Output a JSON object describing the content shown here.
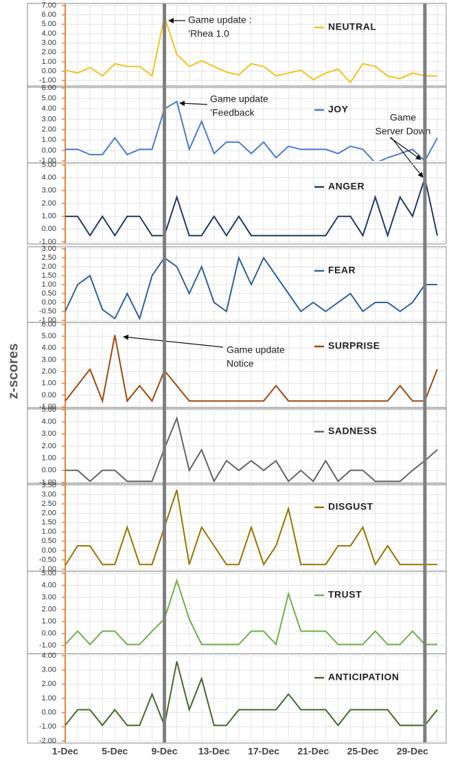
{
  "y_label": "z-scores",
  "chart_data": [
    {
      "type": "line",
      "grid": true,
      "series": [
        {
          "name": "NEUTRAL",
          "color": "#f2c21b",
          "values": [
            0.1,
            -0.2,
            0.4,
            -0.5,
            0.8,
            0.5,
            0.5,
            -0.5,
            5.8,
            1.8,
            0.5,
            1.1,
            0.5,
            -0.1,
            -0.4,
            0.8,
            0.5,
            -0.5,
            -0.2,
            0.1,
            -0.9,
            -0.2,
            0.2,
            -1.2,
            0.8,
            0.5,
            -0.5,
            -0.8,
            -0.2,
            -0.5,
            -0.5
          ]
        }
      ],
      "ylim": [
        -1.5,
        7
      ],
      "yticks": [
        {
          "value": 7,
          "label": "7.00"
        },
        {
          "value": 6,
          "label": "6.00"
        },
        {
          "value": 5,
          "label": "5.00"
        },
        {
          "value": 4,
          "label": "4.00"
        },
        {
          "value": 3,
          "label": "3.00"
        },
        {
          "value": 2,
          "label": "2.00"
        },
        {
          "value": 1,
          "label": "1.00"
        },
        {
          "value": 0,
          "label": "0.00"
        },
        {
          "value": -1,
          "label": "-1.00"
        }
      ],
      "annotations": [
        {
          "lines": [
            "Game update :",
            "’Rhea 1.0"
          ]
        }
      ]
    },
    {
      "type": "line",
      "grid": true,
      "series": [
        {
          "name": "JOY",
          "color": "#4a7bd0",
          "values": [
            0.1,
            0.1,
            -0.4,
            -0.4,
            1.2,
            -0.4,
            0.1,
            0.1,
            4.0,
            4.7,
            0.1,
            2.8,
            -0.3,
            0.8,
            0.8,
            -0.3,
            0.8,
            -0.7,
            0.4,
            0.1,
            0.1,
            0.1,
            -0.3,
            0.4,
            0.1,
            -1.2,
            -0.7,
            -0.3,
            0.1,
            -1.0,
            1.2
          ]
        }
      ],
      "ylim": [
        -1,
        6
      ],
      "yticks": [
        {
          "value": 6,
          "label": "6.00"
        },
        {
          "value": 5,
          "label": "5.00"
        },
        {
          "value": 4,
          "label": "4.00"
        },
        {
          "value": 3,
          "label": "3.00"
        },
        {
          "value": 2,
          "label": "2.00"
        },
        {
          "value": 1,
          "label": "1.00"
        },
        {
          "value": 0,
          "label": "0.00"
        },
        {
          "value": -1,
          "label": "-1.00"
        }
      ],
      "annotations": [
        {
          "lines": [
            "Game update",
            "’Feedback"
          ]
        },
        {
          "lines": [
            "Game",
            "Server Down"
          ]
        }
      ]
    },
    {
      "type": "line",
      "grid": true,
      "series": [
        {
          "name": "ANGER",
          "color": "#1f3864",
          "values": [
            1,
            1,
            -0.5,
            1,
            -0.5,
            1,
            1,
            -0.5,
            -0.5,
            2.5,
            -0.5,
            -0.5,
            1,
            -0.5,
            1,
            -0.5,
            -0.5,
            -0.5,
            -0.5,
            -0.5,
            -0.5,
            -0.5,
            1,
            1,
            -0.5,
            2.5,
            -0.5,
            2.5,
            1,
            4,
            -0.5
          ]
        }
      ],
      "ylim": [
        -1,
        5
      ],
      "yticks": [
        {
          "value": 5,
          "label": "5.00"
        },
        {
          "value": 4,
          "label": "4.00"
        },
        {
          "value": 3,
          "label": "3.00"
        },
        {
          "value": 2,
          "label": "2.00"
        },
        {
          "value": 1,
          "label": "1.00"
        },
        {
          "value": 0,
          "label": "0.00"
        },
        {
          "value": -1,
          "label": "-1.00"
        }
      ]
    },
    {
      "type": "line",
      "grid": true,
      "series": [
        {
          "name": "FEAR",
          "color": "#2e6198",
          "values": [
            -0.5,
            1.0,
            1.5,
            -0.4,
            -0.9,
            0.5,
            -0.9,
            1.5,
            2.5,
            2.0,
            0.5,
            2.0,
            0.0,
            -0.5,
            2.5,
            1.0,
            2.5,
            1.5,
            0.5,
            -0.5,
            0.0,
            -0.5,
            0.0,
            0.5,
            -0.5,
            0.0,
            0.0,
            -0.5,
            0.0,
            1.0,
            1.0
          ]
        }
      ],
      "ylim": [
        -1,
        3
      ],
      "yticks": [
        {
          "value": 3,
          "label": "3.00"
        },
        {
          "value": 2.5,
          "label": "2.50"
        },
        {
          "value": 2,
          "label": "2.00"
        },
        {
          "value": 1.5,
          "label": "1.50"
        },
        {
          "value": 1,
          "label": "1.00"
        },
        {
          "value": 0.5,
          "label": "0.50"
        },
        {
          "value": 0,
          "label": "0.00"
        },
        {
          "value": -0.5,
          "label": "-0.50"
        },
        {
          "value": -1,
          "label": "-1.00"
        }
      ]
    },
    {
      "type": "line",
      "grid": true,
      "series": [
        {
          "name": "SURPRISE",
          "color": "#9e480e",
          "values": [
            -0.5,
            0.85,
            2.2,
            -0.5,
            5.1,
            -0.5,
            0.8,
            -0.5,
            2.1,
            0.8,
            -0.5,
            -0.5,
            -0.5,
            -0.5,
            -0.5,
            -0.5,
            -0.5,
            0.8,
            -0.5,
            -0.5,
            -0.5,
            -0.5,
            -0.5,
            -0.5,
            -0.5,
            -0.5,
            -0.5,
            0.8,
            -0.5,
            -0.5,
            2.2
          ]
        }
      ],
      "ylim": [
        -1,
        6
      ],
      "yticks": [
        {
          "value": 6,
          "label": "6.00"
        },
        {
          "value": 5,
          "label": "5.00"
        },
        {
          "value": 4,
          "label": "4.00"
        },
        {
          "value": 3,
          "label": "3.00"
        },
        {
          "value": 2,
          "label": "2.00"
        },
        {
          "value": 1,
          "label": "1.00"
        },
        {
          "value": 0,
          "label": "0.00"
        },
        {
          "value": -1,
          "label": "-1.00"
        }
      ],
      "annotations": [
        {
          "lines": [
            "Game update",
            "Notice"
          ]
        }
      ]
    },
    {
      "type": "line",
      "grid": true,
      "series": [
        {
          "name": "SADNESS",
          "color": "#636363",
          "values": [
            0,
            0,
            -0.9,
            0,
            0,
            -0.9,
            -0.9,
            -0.9,
            1.8,
            4.3,
            0,
            1.7,
            -0.9,
            0.8,
            0,
            0.8,
            0,
            0.8,
            -0.9,
            0,
            -0.9,
            0.8,
            -0.9,
            0,
            0,
            -0.9,
            -0.9,
            -0.9,
            0,
            0.8,
            1.7
          ]
        }
      ],
      "ylim": [
        -1,
        5
      ],
      "yticks": [
        {
          "value": 5,
          "label": "5.00"
        },
        {
          "value": 4,
          "label": "4.00"
        },
        {
          "value": 3,
          "label": "3.00"
        },
        {
          "value": 2,
          "label": "2.00"
        },
        {
          "value": 1,
          "label": "1.00"
        },
        {
          "value": 0,
          "label": "0.00"
        },
        {
          "value": -1,
          "label": "-1.00"
        }
      ]
    },
    {
      "type": "line",
      "grid": true,
      "series": [
        {
          "name": "DISGUST",
          "color": "#997300",
          "values": [
            -0.8,
            0.25,
            0.25,
            -0.75,
            -0.75,
            1.25,
            -0.75,
            -0.75,
            1.25,
            3.25,
            -0.75,
            1.25,
            0.25,
            -0.75,
            -0.75,
            1.25,
            -0.75,
            0.25,
            2.25,
            -0.75,
            -0.75,
            -0.75,
            0.25,
            0.25,
            1.25,
            -0.75,
            0.25,
            -0.75,
            -0.75,
            -0.75,
            -0.75
          ]
        }
      ],
      "ylim": [
        -1,
        3.5
      ],
      "yticks": [
        {
          "value": 3.5,
          "label": "3.50"
        },
        {
          "value": 3,
          "label": "3.00"
        },
        {
          "value": 2.5,
          "label": "2.50"
        },
        {
          "value": 2,
          "label": "2.00"
        },
        {
          "value": 1.5,
          "label": "1.50"
        },
        {
          "value": 1,
          "label": "1.00"
        },
        {
          "value": 0.5,
          "label": "0.50"
        },
        {
          "value": 0,
          "label": "0.00"
        },
        {
          "value": -0.5,
          "label": "-0.50"
        },
        {
          "value": -1,
          "label": "-1.00"
        }
      ]
    },
    {
      "type": "line",
      "grid": true,
      "series": [
        {
          "name": "TRUST",
          "color": "#70ad47",
          "values": [
            -0.9,
            0.2,
            -0.9,
            0.2,
            0.2,
            -0.9,
            -0.9,
            0.2,
            1.2,
            4.4,
            1.2,
            -0.9,
            -0.9,
            -0.9,
            -0.9,
            0.2,
            0.2,
            -0.9,
            3.3,
            0.2,
            0.2,
            0.2,
            -0.9,
            -0.9,
            -0.9,
            0.2,
            -0.9,
            -0.9,
            0.2,
            -0.9,
            -0.9
          ]
        }
      ],
      "ylim": [
        -1.5,
        5
      ],
      "yticks": [
        {
          "value": 5,
          "label": "5.00"
        },
        {
          "value": 4,
          "label": "4.00"
        },
        {
          "value": 3,
          "label": "3.00"
        },
        {
          "value": 2,
          "label": "2.00"
        },
        {
          "value": 1,
          "label": "1.00"
        },
        {
          "value": 0,
          "label": "0.00"
        },
        {
          "value": -1,
          "label": "-1.00"
        }
      ]
    },
    {
      "type": "line",
      "grid": true,
      "categories": [
        "1-Dec",
        null,
        null,
        null,
        "5-Dec",
        null,
        null,
        null,
        "9-Dec",
        null,
        null,
        null,
        "13-Dec",
        null,
        null,
        null,
        "17-Dec",
        null,
        null,
        null,
        "21-Dec",
        null,
        null,
        null,
        "25-Dec",
        null,
        null,
        null,
        "29-Dec",
        null,
        null
      ],
      "series": [
        {
          "name": "ANTICIPATION",
          "color": "#43682b",
          "values": [
            -0.9,
            0.2,
            0.2,
            -0.9,
            0.2,
            -0.9,
            -0.9,
            1.3,
            -0.9,
            3.6,
            0.2,
            2.4,
            -0.9,
            -0.9,
            0.2,
            0.2,
            0.2,
            0.2,
            1.3,
            0.2,
            0.2,
            0.2,
            -0.9,
            0.2,
            0.2,
            0.2,
            0.2,
            -0.9,
            -0.9,
            -0.9,
            0.2
          ]
        }
      ],
      "ylim": [
        -2,
        4
      ],
      "yticks": [
        {
          "value": 4,
          "label": "4.00"
        },
        {
          "value": 3,
          "label": "3.00"
        },
        {
          "value": 2,
          "label": "2.00"
        },
        {
          "value": 1,
          "label": "1.00"
        },
        {
          "value": 0,
          "label": "0.00"
        },
        {
          "value": -1,
          "label": "-1.00"
        },
        {
          "value": -2,
          "label": "-2.00"
        }
      ]
    }
  ]
}
